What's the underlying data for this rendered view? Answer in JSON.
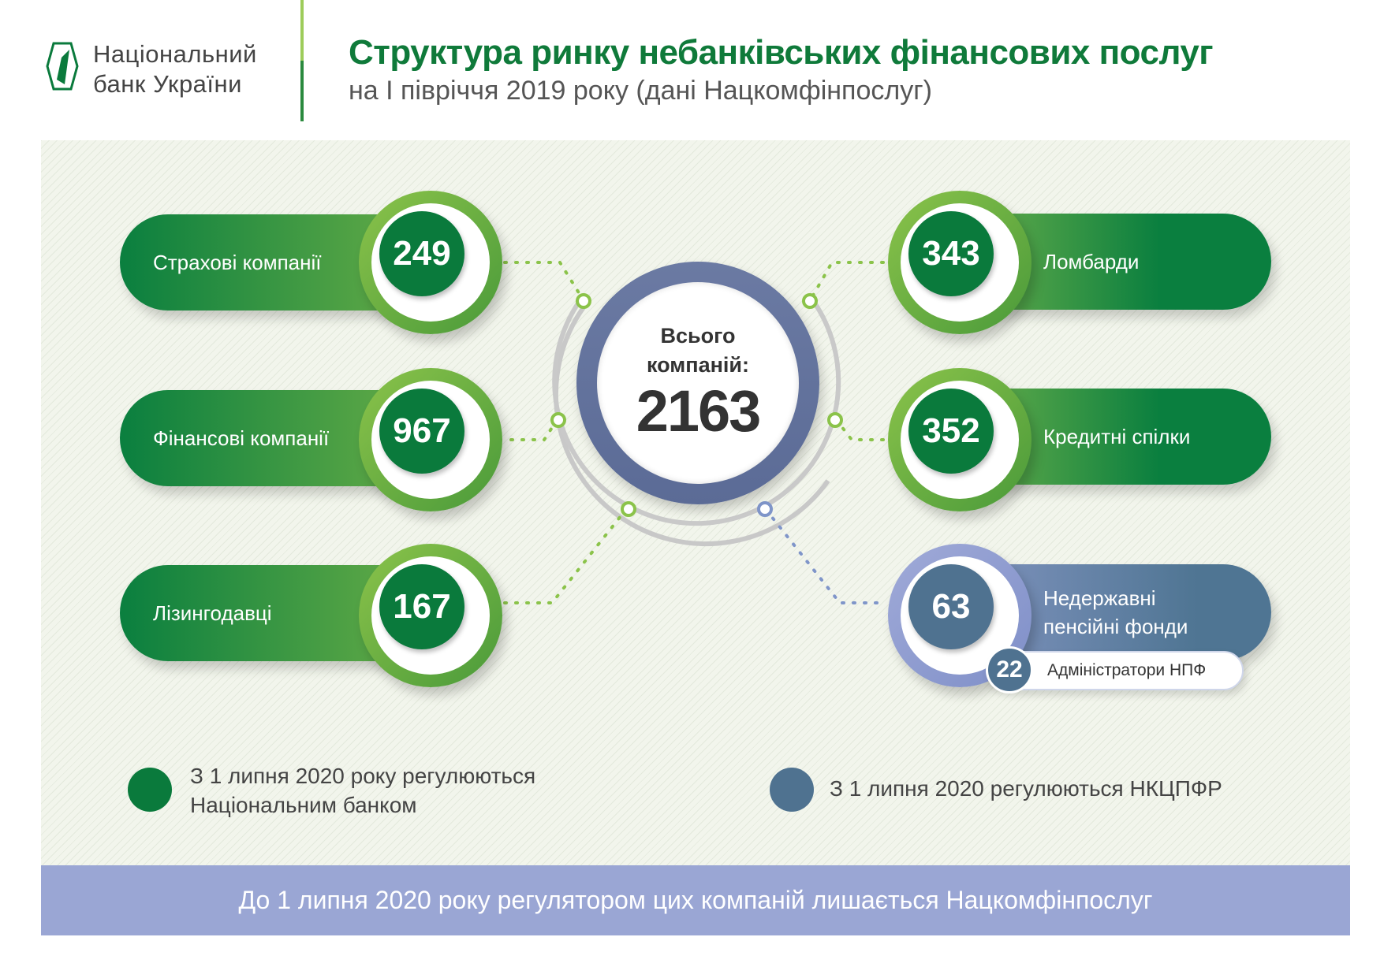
{
  "header": {
    "logo_text_line1": "Національний",
    "logo_text_line2": "банк України",
    "title": "Структура ринку небанківських фінансових послуг",
    "subtitle": "на І півріччя 2019 року (дані Нацкомфінпослуг)"
  },
  "center": {
    "label_line1": "Всього",
    "label_line2": "компаній:",
    "total": "2163"
  },
  "left_items": [
    {
      "label": "Страхові компанії",
      "count": "249"
    },
    {
      "label": "Фінансові компанії",
      "count": "967"
    },
    {
      "label": "Лізингодавці",
      "count": "167"
    }
  ],
  "right_items": [
    {
      "label": "Ломбарди",
      "count": "343"
    },
    {
      "label": "Кредитні спілки",
      "count": "352"
    },
    {
      "label_line1": "Недержавні",
      "label_line2": "пенсійні фонди",
      "count": "63",
      "sub_label": "Адміністратори НПФ",
      "sub_count": "22"
    }
  ],
  "legend": [
    {
      "line1": "З 1 липня 2020 року регулюються",
      "line2": "Національним банком",
      "color": "#0a7a3c"
    },
    {
      "line1": "З 1 липня 2020 регулюються НКЦПФР",
      "color": "#4f7290"
    }
  ],
  "footer": "До 1 липня 2020 року регулятором цих компаній лишається Нацкомфінпослуг",
  "colors": {
    "green": "#0a7a3c",
    "light_green": "#8bc34a",
    "blue_grey": "#4f7290",
    "footer_band": "#9aa6d4"
  }
}
